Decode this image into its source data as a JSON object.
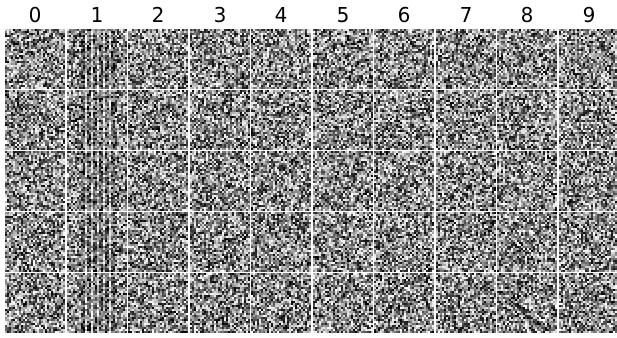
{
  "column_labels": [
    "0",
    "1",
    "2",
    "3",
    "4",
    "5",
    "6",
    "7",
    "8",
    "9"
  ],
  "rows_per_column": 5,
  "colors": {
    "background": "#ffffff",
    "label": "#000000"
  }
}
